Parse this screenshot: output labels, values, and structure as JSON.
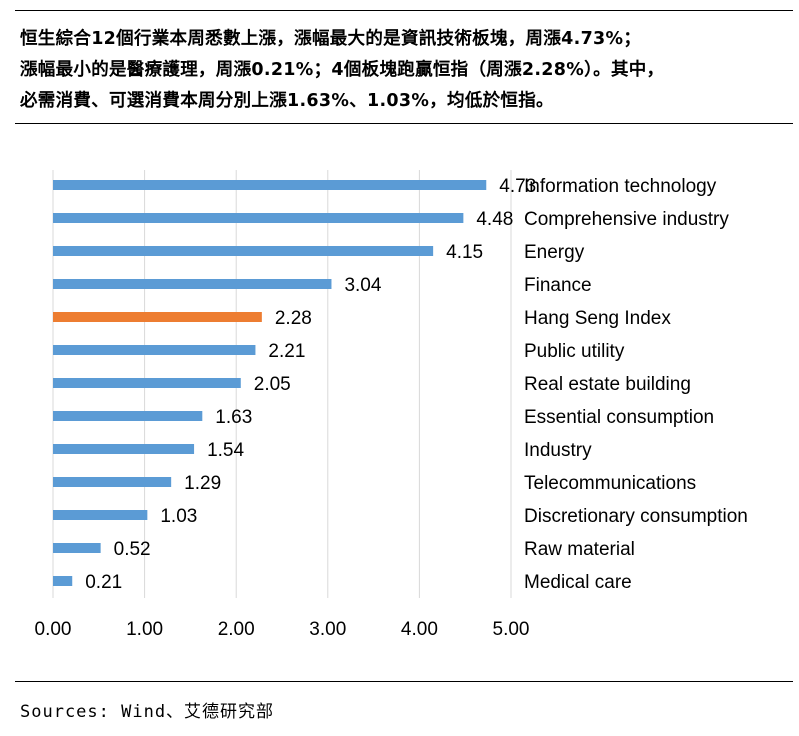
{
  "headline": {
    "lines": [
      "恒生綜合12個行業本周悉數上漲，漲幅最大的是資訊技術板塊，周漲4.73%；",
      "漲幅最小的是醫療護理，周漲0.21%；4個板塊跑贏恒指（周漲2.28%）。其中，",
      "必需消費、可選消費本周分別上漲1.63%、1.03%，均低於恒指。"
    ]
  },
  "chart_data": {
    "type": "bar",
    "orientation": "horizontal",
    "categories": [
      "Information technology",
      "Comprehensive industry",
      "Energy",
      "Finance",
      "Hang Seng Index",
      "Public utility",
      "Real estate building",
      "Essential consumption",
      "Industry",
      "Telecommunications",
      "Discretionary consumption",
      "Raw material",
      "Medical care"
    ],
    "values": [
      4.73,
      4.48,
      4.15,
      3.04,
      2.28,
      2.21,
      2.05,
      1.63,
      1.54,
      1.29,
      1.03,
      0.52,
      0.21
    ],
    "value_labels": [
      "4.73",
      "4.48",
      "4.15",
      "3.04",
      "2.28",
      "2.21",
      "2.05",
      "1.63",
      "1.54",
      "1.29",
      "1.03",
      "0.52",
      "0.21"
    ],
    "highlight_category": "Hang Seng Index",
    "colors": {
      "bar": "#5b9bd5",
      "highlight": "#ed7d31",
      "grid": "#d9d9d9"
    },
    "xlim": [
      0,
      5
    ],
    "xticks": [
      "0.00",
      "1.00",
      "2.00",
      "3.00",
      "4.00",
      "5.00"
    ],
    "grid": true,
    "legend": "none"
  },
  "sources": "Sources: Wind、艾德研究部"
}
